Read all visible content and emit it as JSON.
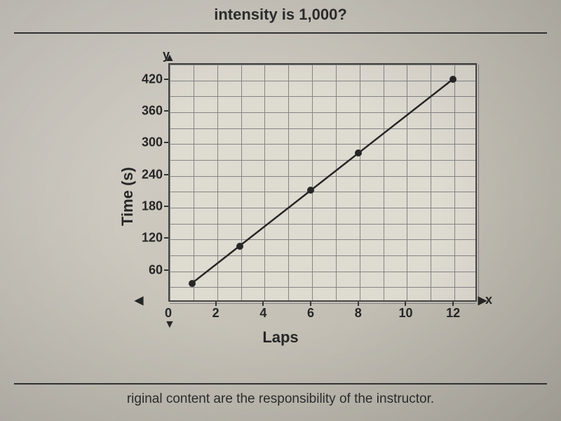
{
  "header_fragment": "intensity is 1,000?",
  "footer_fragment": "riginal content are the responsibility of the instructor.",
  "chart": {
    "type": "line",
    "x_label": "Laps",
    "y_label": "Time (s)",
    "x_axis_letter": "x",
    "y_axis_letter": "y",
    "xlim": [
      0,
      13
    ],
    "ylim": [
      0,
      450
    ],
    "x_ticks": [
      0,
      2,
      4,
      6,
      8,
      10,
      12
    ],
    "y_ticks": [
      60,
      120,
      180,
      240,
      300,
      360,
      420
    ],
    "origin_label": "0",
    "grid_x_minor_step": 1,
    "grid_y_minor_step": 30,
    "points": [
      {
        "x": 1,
        "y": 35
      },
      {
        "x": 3,
        "y": 105
      },
      {
        "x": 6,
        "y": 210
      },
      {
        "x": 8,
        "y": 280
      },
      {
        "x": 12,
        "y": 420
      }
    ],
    "line_color": "#222222",
    "point_color": "#222222",
    "grid_color": "#888888",
    "background_color": "#e8e4da",
    "axis_color": "#333333",
    "label_fontsize": 22,
    "tick_fontsize": 18
  }
}
